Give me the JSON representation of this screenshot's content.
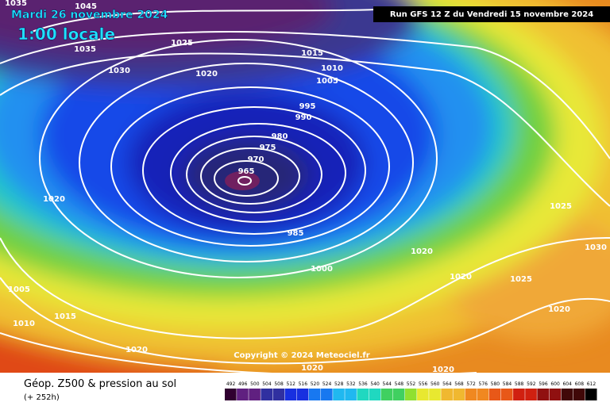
{
  "header": {
    "date": "Mardi 26 novembre 2024",
    "time": "1:00 locale",
    "run": "Run GFS 12 Z du Vendredi 15 novembre 2024"
  },
  "copyright": "Copyright © 2024 Meteociel.fr",
  "footer": {
    "title": "Géop. Z500 & pression au sol",
    "subtitle": "(+ 252h)"
  },
  "scale": {
    "labels": [
      492,
      496,
      500,
      504,
      508,
      512,
      516,
      520,
      524,
      528,
      532,
      536,
      540,
      544,
      548,
      552,
      556,
      560,
      564,
      568,
      572,
      576,
      580,
      584,
      588,
      592,
      596,
      600,
      604,
      608,
      612
    ]
  },
  "isobar_labels": [
    "1045",
    "1035",
    "1035",
    "1025",
    "1030",
    "1020",
    "1015",
    "1010",
    "1005",
    "995",
    "990",
    "980",
    "975",
    "970",
    "965",
    "985",
    "1000",
    "1020",
    "1005",
    "1010",
    "1015",
    "1020",
    "1020",
    "1020",
    "1020",
    "1020",
    "1025",
    "1030",
    "1025",
    "1020"
  ]
}
